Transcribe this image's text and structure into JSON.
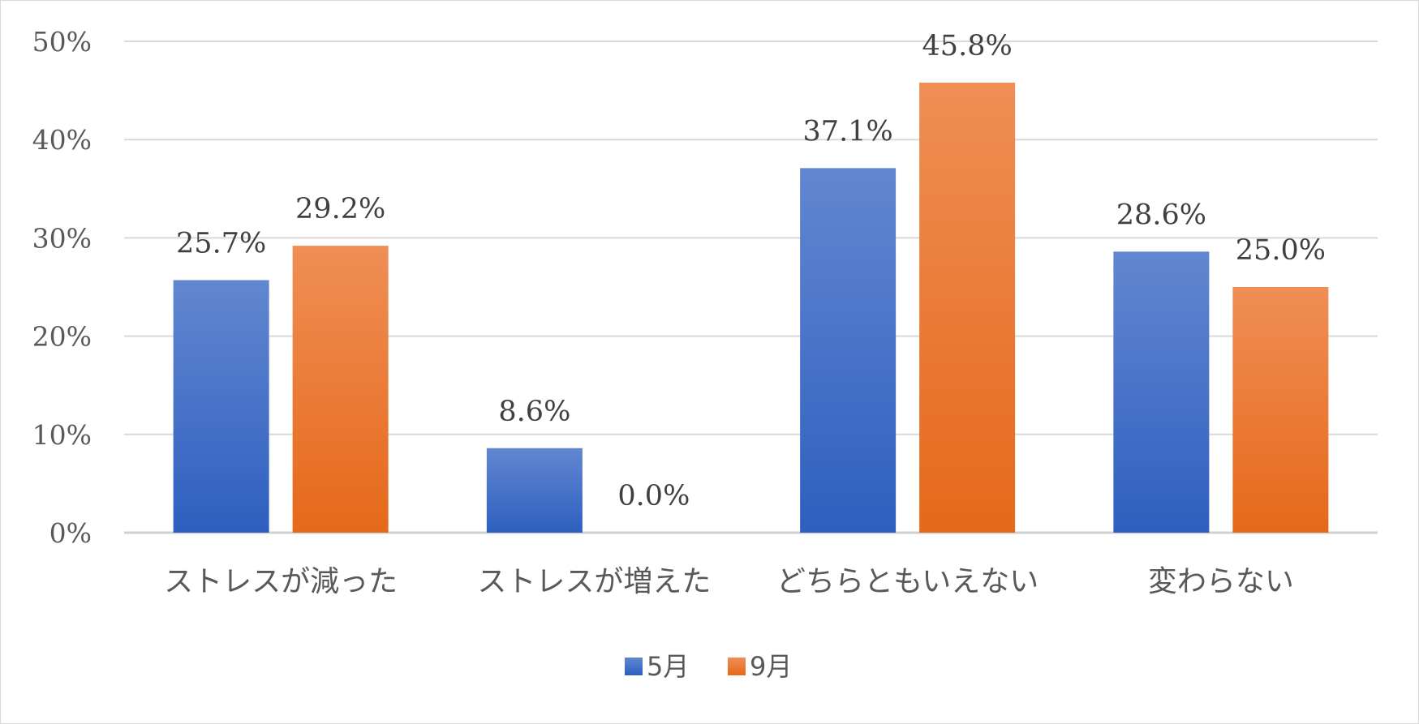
{
  "chart_data": {
    "type": "bar",
    "title": "",
    "xlabel": "",
    "ylabel": "",
    "ylim": [
      0,
      50
    ],
    "yticks": [
      0,
      10,
      20,
      30,
      40,
      50
    ],
    "ytick_labels": [
      "0%",
      "10%",
      "20%",
      "30%",
      "40%",
      "50%"
    ],
    "categories": [
      "ストレスが減った",
      "ストレスが増えた",
      "どちらともいえない",
      "変わらない"
    ],
    "series": [
      {
        "name": "5月",
        "color": "#4472C4",
        "values": [
          25.7,
          8.6,
          37.1,
          28.6
        ],
        "labels": [
          "25.7%",
          "8.6%",
          "37.1%",
          "28.6%"
        ]
      },
      {
        "name": "9月",
        "color": "#ED7D31",
        "values": [
          29.2,
          0.0,
          45.8,
          25.0
        ],
        "labels": [
          "29.2%",
          "0.0%",
          "45.8%",
          "25.0%"
        ]
      }
    ],
    "grid": true,
    "legend_position": "bottom"
  }
}
